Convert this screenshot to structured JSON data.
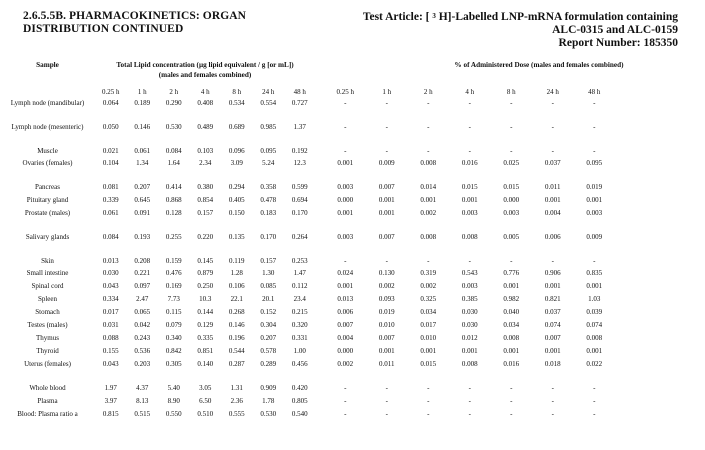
{
  "header": {
    "section_line1": "2.6.5.5B. PHARMACOKINETICS: ORGAN",
    "section_line2": "DISTRIBUTION CONTINUED",
    "test_article_pre": "Test Article: [",
    "test_article_sup": "3",
    "test_article_post": "H]-Labelled LNP-mRNA formulation containing",
    "test_article_line2": "ALC-0315 and ALC-0159",
    "report_number": "Report Number: 185350"
  },
  "columns": {
    "sample": "Sample",
    "conc_title_1": "Total Lipid concentration (µg lipid equivalent / g [or mL])",
    "conc_title_2": "(males and females combined)",
    "dose_title": "% of Administered Dose (males and females combined)",
    "timepoints": [
      "0.25 h",
      "1 h",
      "2 h",
      "4 h",
      "8 h",
      "24 h",
      "48 h"
    ]
  },
  "rows": [
    {
      "sample": "Lymph node (mandibular)",
      "conc": [
        "0.064",
        "0.189",
        "0.290",
        "0.408",
        "0.534",
        "0.554",
        "0.727"
      ],
      "dose": [
        "-",
        "-",
        "-",
        "-",
        "-",
        "-",
        "-"
      ]
    },
    {
      "sample": "Lymph node (mesenteric)",
      "conc": [
        "0.050",
        "0.146",
        "0.530",
        "0.489",
        "0.689",
        "0.985",
        "1.37"
      ],
      "dose": [
        "-",
        "-",
        "-",
        "-",
        "-",
        "-",
        "-"
      ]
    },
    {
      "sample": "Muscle",
      "conc": [
        "0.021",
        "0.061",
        "0.084",
        "0.103",
        "0.096",
        "0.095",
        "0.192"
      ],
      "dose": [
        "-",
        "-",
        "-",
        "-",
        "-",
        "-",
        "-"
      ]
    },
    {
      "sample": "Ovaries (females)",
      "conc": [
        "0.104",
        "1.34",
        "1.64",
        "2.34",
        "3.09",
        "5.24",
        "12.3"
      ],
      "dose": [
        "0.001",
        "0.009",
        "0.008",
        "0.016",
        "0.025",
        "0.037",
        "0.095"
      ]
    },
    {
      "sample": "Pancreas",
      "conc": [
        "0.081",
        "0.207",
        "0.414",
        "0.380",
        "0.294",
        "0.358",
        "0.599"
      ],
      "dose": [
        "0.003",
        "0.007",
        "0.014",
        "0.015",
        "0.015",
        "0.011",
        "0.019"
      ]
    },
    {
      "sample": "Pituitary gland",
      "conc": [
        "0.339",
        "0.645",
        "0.868",
        "0.854",
        "0.405",
        "0.478",
        "0.694"
      ],
      "dose": [
        "0.000",
        "0.001",
        "0.001",
        "0.001",
        "0.000",
        "0.001",
        "0.001"
      ]
    },
    {
      "sample": "Prostate (males)",
      "conc": [
        "0.061",
        "0.091",
        "0.128",
        "0.157",
        "0.150",
        "0.183",
        "0.170"
      ],
      "dose": [
        "0.001",
        "0.001",
        "0.002",
        "0.003",
        "0.003",
        "0.004",
        "0.003"
      ]
    },
    {
      "sample": "Salivary glands",
      "conc": [
        "0.084",
        "0.193",
        "0.255",
        "0.220",
        "0.135",
        "0.170",
        "0.264"
      ],
      "dose": [
        "0.003",
        "0.007",
        "0.008",
        "0.008",
        "0.005",
        "0.006",
        "0.009"
      ]
    },
    {
      "sample": "Skin",
      "conc": [
        "0.013",
        "0.208",
        "0.159",
        "0.145",
        "0.119",
        "0.157",
        "0.253"
      ],
      "dose": [
        "-",
        "-",
        "-",
        "-",
        "-",
        "-",
        "-"
      ]
    },
    {
      "sample": "Small intestine",
      "conc": [
        "0.030",
        "0.221",
        "0.476",
        "0.879",
        "1.28",
        "1.30",
        "1.47"
      ],
      "dose": [
        "0.024",
        "0.130",
        "0.319",
        "0.543",
        "0.776",
        "0.906",
        "0.835"
      ]
    },
    {
      "sample": "Spinal cord",
      "conc": [
        "0.043",
        "0.097",
        "0.169",
        "0.250",
        "0.106",
        "0.085",
        "0.112"
      ],
      "dose": [
        "0.001",
        "0.002",
        "0.002",
        "0.003",
        "0.001",
        "0.001",
        "0.001"
      ]
    },
    {
      "sample": "Spleen",
      "conc": [
        "0.334",
        "2.47",
        "7.73",
        "10.3",
        "22.1",
        "20.1",
        "23.4"
      ],
      "dose": [
        "0.013",
        "0.093",
        "0.325",
        "0.385",
        "0.982",
        "0.821",
        "1.03"
      ]
    },
    {
      "sample": "Stomach",
      "conc": [
        "0.017",
        "0.065",
        "0.115",
        "0.144",
        "0.268",
        "0.152",
        "0.215"
      ],
      "dose": [
        "0.006",
        "0.019",
        "0.034",
        "0.030",
        "0.040",
        "0.037",
        "0.039"
      ]
    },
    {
      "sample": "Testes (males)",
      "conc": [
        "0.031",
        "0.042",
        "0.079",
        "0.129",
        "0.146",
        "0.304",
        "0.320"
      ],
      "dose": [
        "0.007",
        "0.010",
        "0.017",
        "0.030",
        "0.034",
        "0.074",
        "0.074"
      ]
    },
    {
      "sample": "Thymus",
      "conc": [
        "0.088",
        "0.243",
        "0.340",
        "0.335",
        "0.196",
        "0.207",
        "0.331"
      ],
      "dose": [
        "0.004",
        "0.007",
        "0.010",
        "0.012",
        "0.008",
        "0.007",
        "0.008"
      ]
    },
    {
      "sample": "Thyroid",
      "conc": [
        "0.155",
        "0.536",
        "0.842",
        "0.851",
        "0.544",
        "0.578",
        "1.00"
      ],
      "dose": [
        "0.000",
        "0.001",
        "0.001",
        "0.001",
        "0.001",
        "0.001",
        "0.001"
      ]
    },
    {
      "sample": "Uterus (females)",
      "conc": [
        "0.043",
        "0.203",
        "0.305",
        "0.140",
        "0.287",
        "0.289",
        "0.456"
      ],
      "dose": [
        "0.002",
        "0.011",
        "0.015",
        "0.008",
        "0.016",
        "0.018",
        "0.022"
      ]
    },
    {
      "sample": "Whole blood",
      "conc": [
        "1.97",
        "4.37",
        "5.40",
        "3.05",
        "1.31",
        "0.909",
        "0.420"
      ],
      "dose": [
        "-",
        "-",
        "-",
        "-",
        "-",
        "-",
        "-"
      ]
    },
    {
      "sample": "Plasma",
      "conc": [
        "3.97",
        "8.13",
        "8.90",
        "6.50",
        "2.36",
        "1.78",
        "0.805"
      ],
      "dose": [
        "-",
        "-",
        "-",
        "-",
        "-",
        "-",
        "-"
      ]
    },
    {
      "sample": "Blood: Plasma ratio a",
      "conc": [
        "0.815",
        "0.515",
        "0.550",
        "0.510",
        "0.555",
        "0.530",
        "0.540"
      ],
      "dose": [
        "-",
        "-",
        "-",
        "-",
        "-",
        "-",
        "-"
      ]
    }
  ]
}
